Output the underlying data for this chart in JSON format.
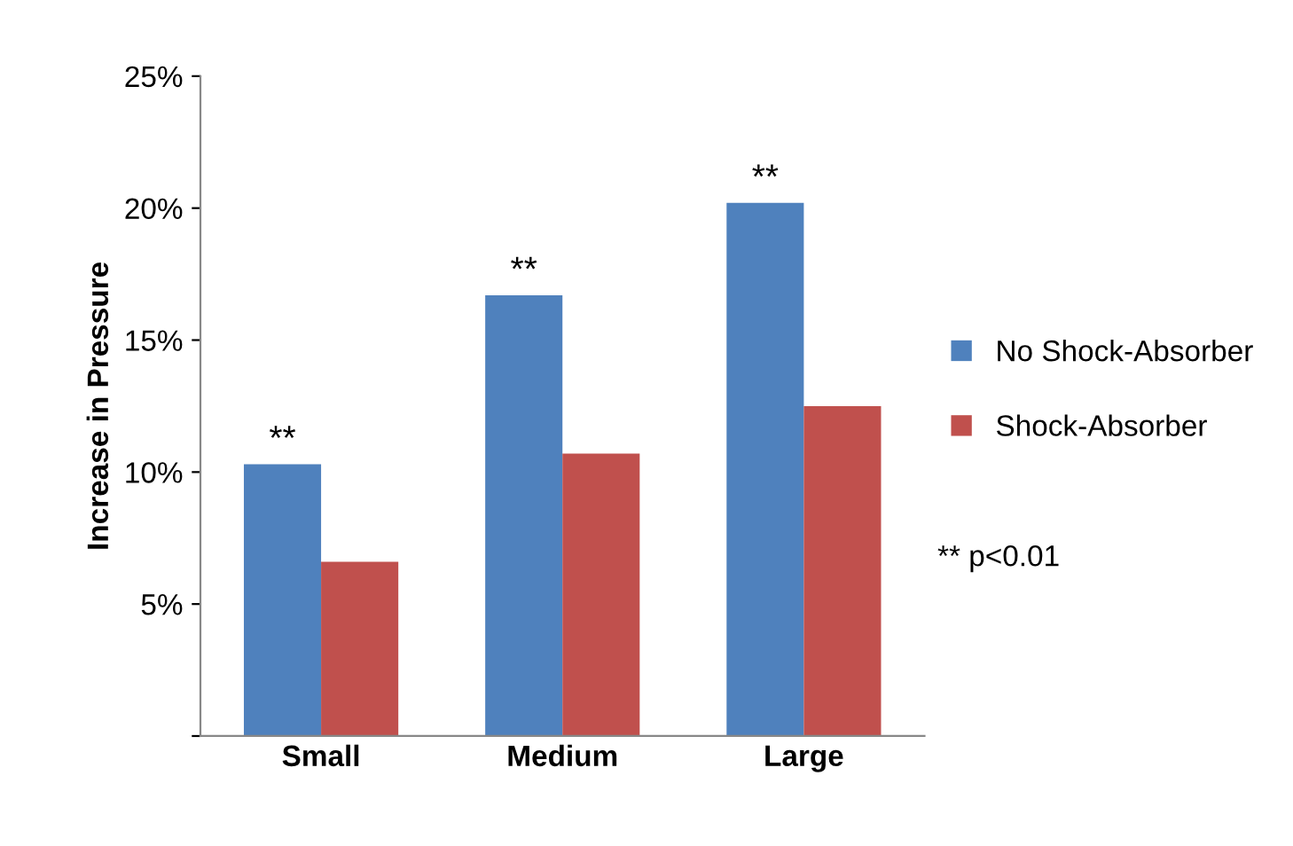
{
  "chart_data": {
    "type": "bar",
    "ylabel": "Increase in Pressure",
    "categories": [
      "Small",
      "Medium",
      "Large"
    ],
    "series": [
      {
        "name": "No Shock-Absorber",
        "color": "#4f81bd",
        "values": [
          10.3,
          16.7,
          20.2
        ]
      },
      {
        "name": "Shock-Absorber",
        "color": "#c0504d",
        "values": [
          6.6,
          10.7,
          12.5
        ]
      }
    ],
    "ylim": [
      0,
      25
    ],
    "yticks": [
      {
        "value": 0,
        "label": null
      },
      {
        "value": 5,
        "label": "5%"
      },
      {
        "value": 10,
        "label": "10%"
      },
      {
        "value": 15,
        "label": "15%"
      },
      {
        "value": 20,
        "label": "20%"
      },
      {
        "value": 25,
        "label": "25%"
      }
    ],
    "grid": false,
    "legend": "right",
    "annotations": [
      {
        "text": "**",
        "x": "Small",
        "y": 10.3
      },
      {
        "text": "**",
        "x": "Medium",
        "y": 16.7
      },
      {
        "text": "**",
        "x": "Large",
        "y": 20.2
      },
      "** p<0.01"
    ]
  }
}
